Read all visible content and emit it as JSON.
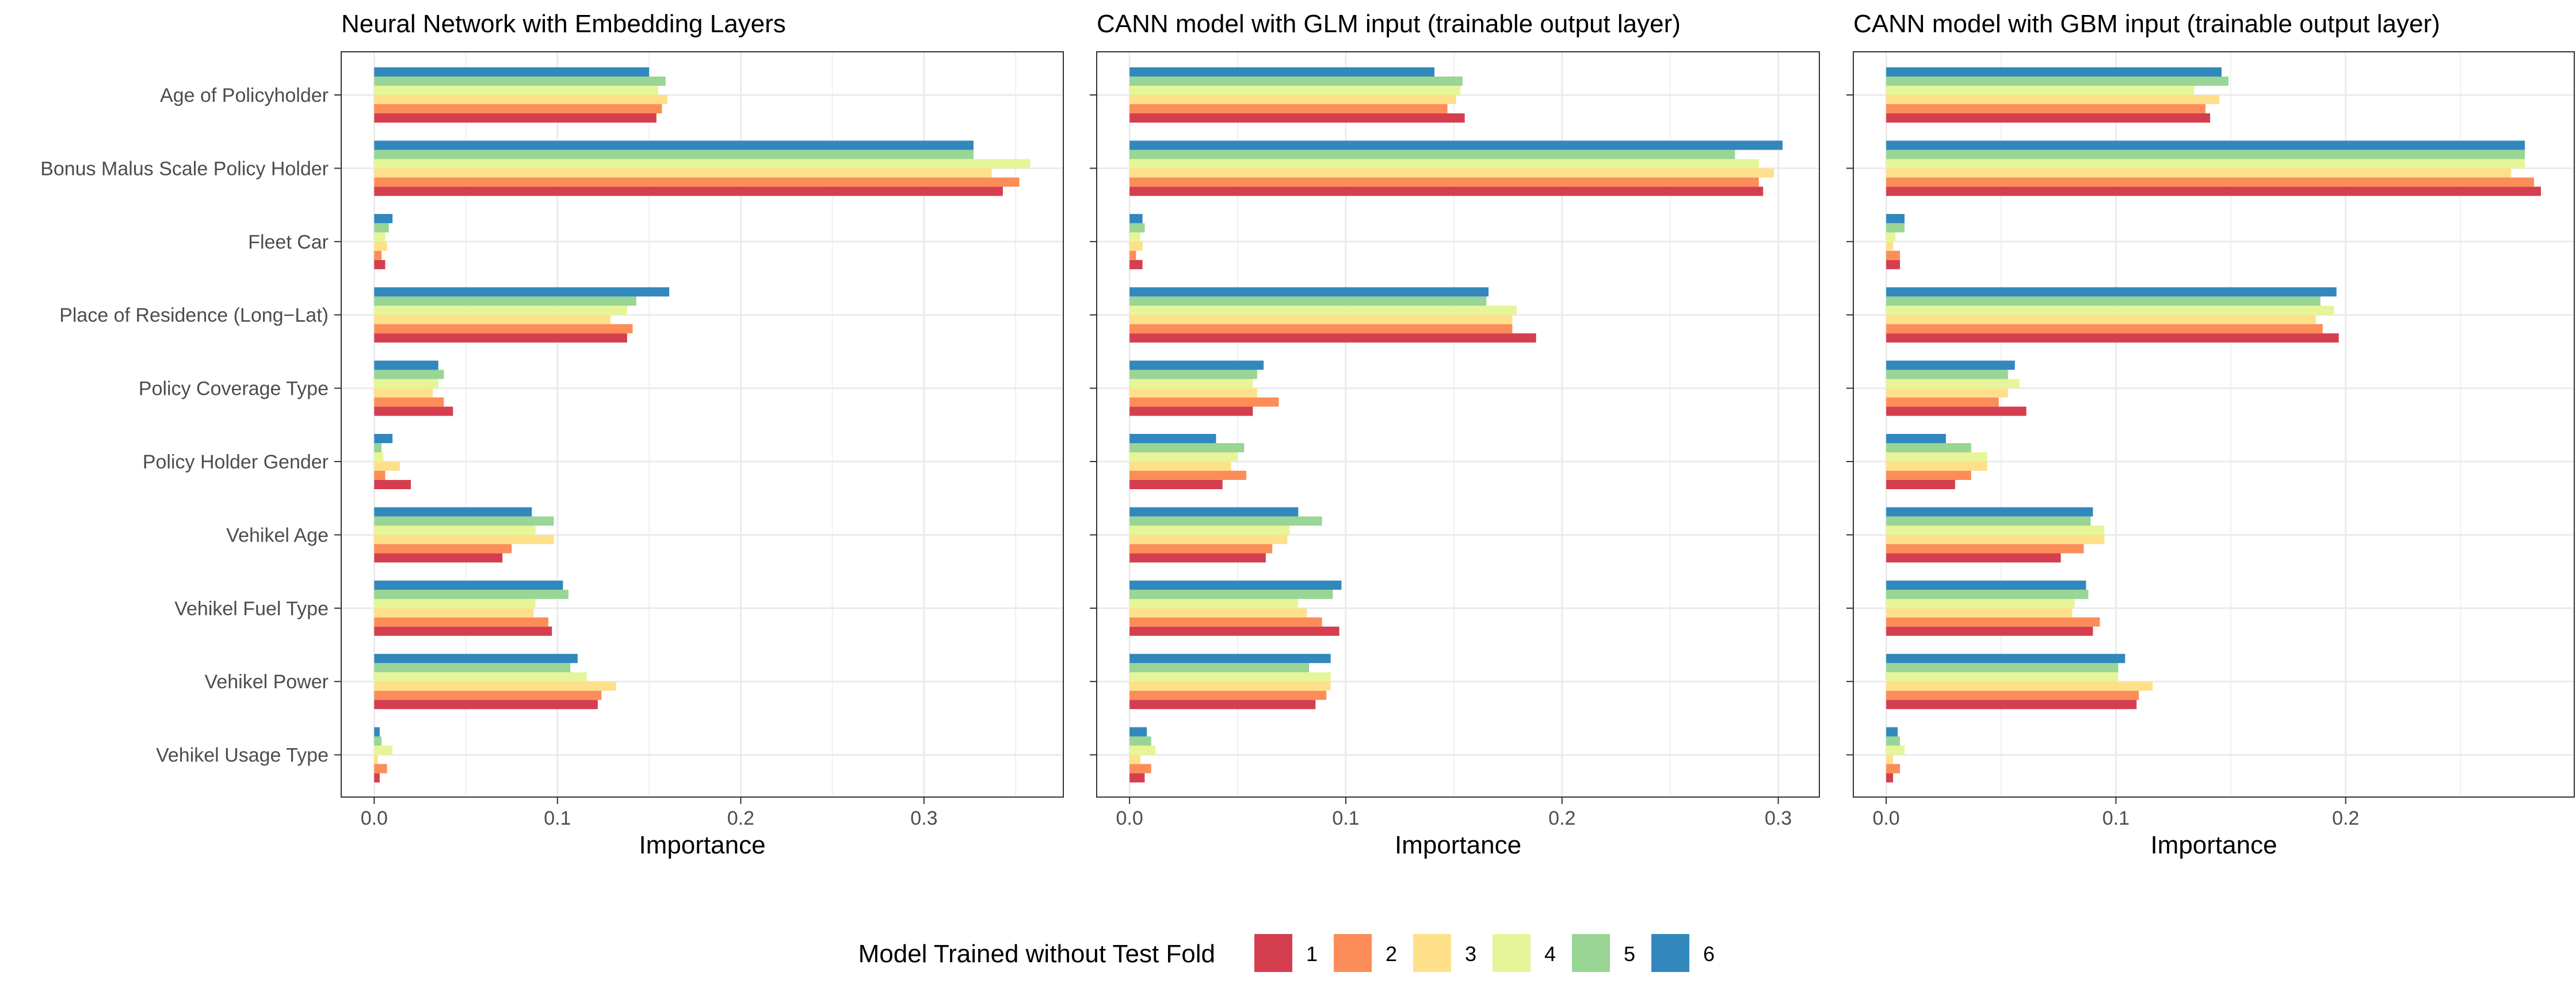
{
  "legend": {
    "title": "Model Trained without Test Fold",
    "position": "bottom",
    "items": [
      {
        "label": "1",
        "color": "#D53E4F"
      },
      {
        "label": "2",
        "color": "#FC8D59"
      },
      {
        "label": "3",
        "color": "#FEE08B"
      },
      {
        "label": "4",
        "color": "#E6F598"
      },
      {
        "label": "5",
        "color": "#99D594"
      },
      {
        "label": "6",
        "color": "#3288BD"
      }
    ]
  },
  "chart_data": [
    {
      "type": "bar",
      "orientation": "horizontal",
      "title": "Neural Network with Embedding Layers",
      "xlabel": "Importance",
      "ylabel": "",
      "xlim": [
        -0.018,
        0.376
      ],
      "xticks": [
        0.0,
        0.1,
        0.2,
        0.3
      ],
      "xtick_labels": [
        "0.0",
        "0.1",
        "0.2",
        "0.3"
      ],
      "grid": true,
      "categories": [
        "Age of Policyholder",
        "Bonus Malus Scale Policy Holder",
        "Fleet Car",
        "Place of Residence (Long−Lat)",
        "Policy Coverage Type",
        "Policy Holder Gender",
        "Vehikel Age",
        "Vehikel Fuel Type",
        "Vehikel Power",
        "Vehikel Usage Type"
      ],
      "series": [
        {
          "name": "1",
          "values": [
            0.154,
            0.343,
            0.006,
            0.138,
            0.043,
            0.02,
            0.07,
            0.097,
            0.122,
            0.003
          ]
        },
        {
          "name": "2",
          "values": [
            0.157,
            0.352,
            0.004,
            0.141,
            0.038,
            0.006,
            0.075,
            0.095,
            0.124,
            0.007
          ]
        },
        {
          "name": "3",
          "values": [
            0.16,
            0.337,
            0.007,
            0.129,
            0.032,
            0.014,
            0.098,
            0.087,
            0.132,
            0.002
          ]
        },
        {
          "name": "4",
          "values": [
            0.155,
            0.358,
            0.006,
            0.138,
            0.035,
            0.005,
            0.088,
            0.088,
            0.116,
            0.01
          ]
        },
        {
          "name": "5",
          "values": [
            0.159,
            0.327,
            0.008,
            0.143,
            0.038,
            0.004,
            0.098,
            0.106,
            0.107,
            0.004
          ]
        },
        {
          "name": "6",
          "values": [
            0.15,
            0.327,
            0.01,
            0.161,
            0.035,
            0.01,
            0.086,
            0.103,
            0.111,
            0.003
          ]
        }
      ]
    },
    {
      "type": "bar",
      "orientation": "horizontal",
      "title": "CANN model with GLM input (trainable output layer)",
      "xlabel": "Importance",
      "ylabel": "",
      "xlim": [
        -0.0152,
        0.319
      ],
      "xticks": [
        0.0,
        0.1,
        0.2,
        0.3
      ],
      "xtick_labels": [
        "0.0",
        "0.1",
        "0.2",
        "0.3"
      ],
      "grid": true,
      "categories": [
        "Age of Policyholder",
        "Bonus Malus Scale Policy Holder",
        "Fleet Car",
        "Place of Residence (Long−Lat)",
        "Policy Coverage Type",
        "Policy Holder Gender",
        "Vehikel Age",
        "Vehikel Fuel Type",
        "Vehikel Power",
        "Vehikel Usage Type"
      ],
      "series": [
        {
          "name": "1",
          "values": [
            0.155,
            0.293,
            0.006,
            0.188,
            0.057,
            0.043,
            0.063,
            0.097,
            0.086,
            0.007
          ]
        },
        {
          "name": "2",
          "values": [
            0.147,
            0.291,
            0.003,
            0.177,
            0.069,
            0.054,
            0.066,
            0.089,
            0.091,
            0.01
          ]
        },
        {
          "name": "3",
          "values": [
            0.151,
            0.298,
            0.006,
            0.177,
            0.059,
            0.047,
            0.073,
            0.082,
            0.093,
            0.005
          ]
        },
        {
          "name": "4",
          "values": [
            0.153,
            0.291,
            0.005,
            0.179,
            0.057,
            0.05,
            0.074,
            0.078,
            0.093,
            0.012
          ]
        },
        {
          "name": "5",
          "values": [
            0.154,
            0.28,
            0.007,
            0.165,
            0.059,
            0.053,
            0.089,
            0.094,
            0.083,
            0.01
          ]
        },
        {
          "name": "6",
          "values": [
            0.141,
            0.302,
            0.006,
            0.166,
            0.062,
            0.04,
            0.078,
            0.098,
            0.093,
            0.008
          ]
        }
      ]
    },
    {
      "type": "bar",
      "orientation": "horizontal",
      "title": "CANN model with GBM input (trainable output layer)",
      "xlabel": "Importance",
      "ylabel": "",
      "xlim": [
        -0.0143,
        0.2995
      ],
      "xticks": [
        0.0,
        0.1,
        0.2
      ],
      "xtick_labels": [
        "0.0",
        "0.1",
        "0.2"
      ],
      "grid": true,
      "categories": [
        "Age of Policyholder",
        "Bonus Malus Scale Policy Holder",
        "Fleet Car",
        "Place of Residence (Long−Lat)",
        "Policy Coverage Type",
        "Policy Holder Gender",
        "Vehikel Age",
        "Vehikel Fuel Type",
        "Vehikel Power",
        "Vehikel Usage Type"
      ],
      "series": [
        {
          "name": "1",
          "values": [
            0.141,
            0.285,
            0.006,
            0.197,
            0.061,
            0.03,
            0.076,
            0.09,
            0.109,
            0.003
          ]
        },
        {
          "name": "2",
          "values": [
            0.139,
            0.282,
            0.006,
            0.19,
            0.049,
            0.037,
            0.086,
            0.093,
            0.11,
            0.006
          ]
        },
        {
          "name": "3",
          "values": [
            0.145,
            0.272,
            0.003,
            0.187,
            0.053,
            0.044,
            0.095,
            0.081,
            0.116,
            0.003
          ]
        },
        {
          "name": "4",
          "values": [
            0.134,
            0.278,
            0.004,
            0.195,
            0.058,
            0.044,
            0.095,
            0.082,
            0.101,
            0.008
          ]
        },
        {
          "name": "5",
          "values": [
            0.149,
            0.278,
            0.008,
            0.189,
            0.053,
            0.037,
            0.089,
            0.088,
            0.101,
            0.006
          ]
        },
        {
          "name": "6",
          "values": [
            0.146,
            0.278,
            0.008,
            0.196,
            0.056,
            0.026,
            0.09,
            0.087,
            0.104,
            0.005
          ]
        }
      ]
    }
  ]
}
